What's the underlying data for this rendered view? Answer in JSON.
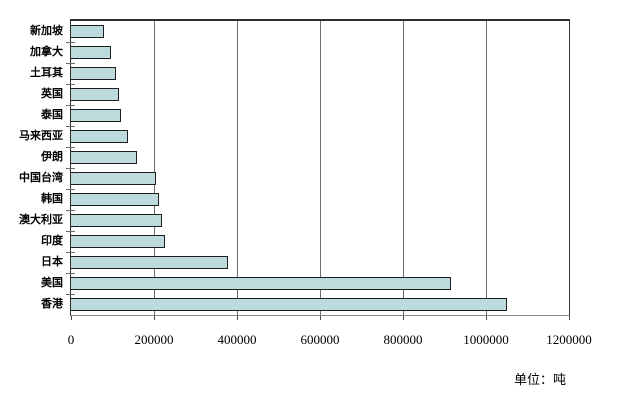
{
  "chart_data": {
    "type": "bar",
    "orientation": "horizontal",
    "title": "",
    "unit_label": "单位：吨",
    "categories": [
      "新加坡",
      "加拿大",
      "土耳其",
      "英国",
      "泰国",
      "马来西亚",
      "伊朗",
      "中国台湾",
      "韩国",
      "澳大利亚",
      "印度",
      "日本",
      "美国",
      "香港"
    ],
    "values": [
      76000,
      95000,
      107000,
      114000,
      117000,
      135000,
      157000,
      203000,
      210000,
      216000,
      225000,
      376000,
      913000,
      1048000
    ],
    "xlabel": "",
    "ylabel": "",
    "xlim": [
      0,
      1200000
    ],
    "xticks": [
      0,
      200000,
      400000,
      600000,
      800000,
      1000000,
      1200000
    ],
    "xtick_labels": [
      "0",
      "200000",
      "400000",
      "600000",
      "800000",
      "1000000",
      "1200000"
    ],
    "grid": true,
    "legend": false,
    "colors": {
      "bar_fill": "#bddbdd",
      "bar_border": "#1e1e1e",
      "gridline": "#6e6e6e",
      "plot_border": "#2d2d2d",
      "text": "#000000",
      "background": "#ffffff"
    }
  }
}
